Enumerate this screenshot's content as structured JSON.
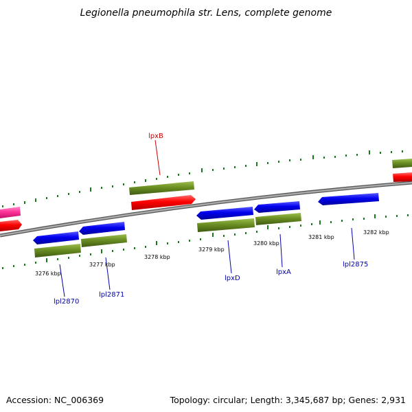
{
  "title": "Legionella pneumophila str. Lens, complete genome",
  "footer": {
    "accession": "Accession: NC_006369",
    "summary": "Topology: circular; Length: 3,345,687 bp; Genes: 2,931"
  },
  "scale_labels": [
    "3276 kbp",
    "3277 kbp",
    "3278 kbp",
    "3279 kbp",
    "3280 kbp",
    "3281 kbp",
    "3282 kbp"
  ],
  "gene_labels": [
    {
      "name": "lpxB",
      "color": "#cc0000"
    },
    {
      "name": "lpl2870",
      "color": "#0000aa"
    },
    {
      "name": "lpl2871",
      "color": "#0000aa"
    },
    {
      "name": "lpxD",
      "color": "#0000aa"
    },
    {
      "name": "lpxA",
      "color": "#0000aa"
    },
    {
      "name": "lpl2875",
      "color": "#0000aa"
    }
  ],
  "colors": {
    "forward_gene": "#ff0000",
    "reverse_gene": "#0000ee",
    "cds_feature": "#6b8e23",
    "other_feature": "#ff3399",
    "backbone": "#808080",
    "tick": "#1a7a1a"
  }
}
